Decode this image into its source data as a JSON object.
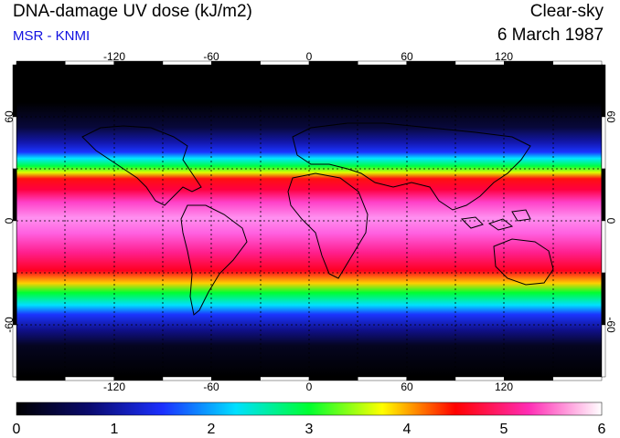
{
  "header": {
    "title": "DNA-damage UV dose (kJ/m2)",
    "subtitle": "MSR - KNMI",
    "condition": "Clear-sky",
    "date": "6 March 1987"
  },
  "map": {
    "lon_ticks": [
      "-120",
      "-60",
      "0",
      "60",
      "120"
    ],
    "lat_ticks": [
      "60",
      "0",
      "-60"
    ],
    "lon_range": [
      -180,
      180
    ],
    "lat_range": [
      -90,
      90
    ]
  },
  "colorbar": {
    "ticks": [
      "0",
      "1",
      "2",
      "3",
      "4",
      "5",
      "6"
    ],
    "range": [
      0,
      6
    ],
    "colors": [
      "#000000",
      "#0a0a6e",
      "#1b30ff",
      "#00e0ff",
      "#00ff30",
      "#ffff00",
      "#ff0000",
      "#ff2db4",
      "#ffffff"
    ]
  }
}
